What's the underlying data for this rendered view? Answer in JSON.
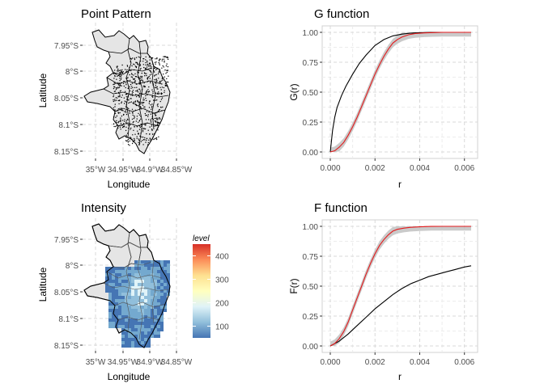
{
  "chart_data": [
    {
      "type": "map",
      "title": "Point Pattern",
      "xlabel": "Longitude",
      "ylabel": "Latitude",
      "x_ticks": [
        "35°W",
        "34.95°W",
        "34.9°W",
        "34.85°W"
      ],
      "y_ticks": [
        "7.95°S",
        "8°S",
        "8.05°S",
        "8.1°S",
        "8.15°S"
      ],
      "grid": true
    },
    {
      "type": "line",
      "title": "G function",
      "xlabel": "r",
      "ylabel": "G(r)",
      "x_ticks": [
        "0.000",
        "0.002",
        "0.004",
        "0.006"
      ],
      "y_ticks": [
        "0.00",
        "0.25",
        "0.50",
        "0.75",
        "1.00"
      ],
      "xlim": [
        0,
        0.0063
      ],
      "ylim": [
        0,
        1
      ],
      "grid": true,
      "series": [
        {
          "color": "#000000",
          "x": [
            0,
            0.0001,
            0.0002,
            0.0003,
            0.0005,
            0.0007,
            0.001,
            0.0013,
            0.0016,
            0.002,
            0.0024,
            0.0028,
            0.0032,
            0.0036,
            0.004,
            0.0045,
            0.005,
            0.0055,
            0.0063
          ],
          "y": [
            0,
            0.18,
            0.29,
            0.37,
            0.47,
            0.55,
            0.65,
            0.74,
            0.81,
            0.89,
            0.94,
            0.97,
            0.985,
            0.993,
            0.997,
            0.999,
            1,
            1,
            1
          ]
        },
        {
          "color": "#e41a1c",
          "x": [
            0,
            0.0002,
            0.0004,
            0.0006,
            0.0008,
            0.001,
            0.0012,
            0.0014,
            0.0016,
            0.0018,
            0.002,
            0.0022,
            0.0024,
            0.0026,
            0.0028,
            0.003,
            0.0032,
            0.0035,
            0.0038,
            0.0042,
            0.0046,
            0.005,
            0.0063
          ],
          "y": [
            0,
            0.01,
            0.04,
            0.08,
            0.14,
            0.21,
            0.29,
            0.38,
            0.47,
            0.56,
            0.65,
            0.73,
            0.8,
            0.86,
            0.91,
            0.94,
            0.96,
            0.98,
            0.99,
            0.995,
            0.998,
            1,
            1
          ]
        }
      ]
    },
    {
      "type": "heatmap",
      "title": "Intensity",
      "xlabel": "Longitude",
      "ylabel": "Latitude",
      "x_ticks": [
        "35°W",
        "34.95°W",
        "34.9°W",
        "34.85°W"
      ],
      "y_ticks": [
        "7.95°S",
        "8°S",
        "8.05°S",
        "8.1°S",
        "8.15°S"
      ],
      "legend": {
        "title": "level",
        "ticks": [
          100,
          200,
          300,
          400
        ],
        "range": [
          50,
          450
        ],
        "colors": [
          "#4575b4",
          "#91bfdb",
          "#e0f3f8",
          "#ffffbf",
          "#fee090",
          "#fc8d59",
          "#d73027"
        ]
      },
      "grid": true
    },
    {
      "type": "line",
      "title": "F function",
      "xlabel": "r",
      "ylabel": "F(r)",
      "x_ticks": [
        "0.000",
        "0.002",
        "0.004",
        "0.006"
      ],
      "y_ticks": [
        "0.00",
        "0.25",
        "0.50",
        "0.75",
        "1.00"
      ],
      "xlim": [
        0,
        0.0063
      ],
      "ylim": [
        0,
        1
      ],
      "grid": true,
      "series": [
        {
          "color": "#000000",
          "x": [
            0,
            0.0004,
            0.0008,
            0.0012,
            0.0016,
            0.002,
            0.0024,
            0.0028,
            0.0032,
            0.0036,
            0.004,
            0.0044,
            0.0048,
            0.0052,
            0.0056,
            0.006,
            0.0063
          ],
          "y": [
            0,
            0.04,
            0.1,
            0.17,
            0.24,
            0.31,
            0.37,
            0.43,
            0.48,
            0.52,
            0.55,
            0.58,
            0.6,
            0.62,
            0.64,
            0.66,
            0.67
          ]
        },
        {
          "color": "#e41a1c",
          "x": [
            0,
            0.0002,
            0.0004,
            0.0006,
            0.0008,
            0.001,
            0.0012,
            0.0014,
            0.0016,
            0.0018,
            0.002,
            0.0022,
            0.0024,
            0.0026,
            0.0028,
            0.003,
            0.0033,
            0.0036,
            0.004,
            0.0045,
            0.005,
            0.0063
          ],
          "y": [
            0,
            0.02,
            0.06,
            0.12,
            0.2,
            0.3,
            0.4,
            0.5,
            0.6,
            0.69,
            0.77,
            0.84,
            0.89,
            0.93,
            0.96,
            0.975,
            0.985,
            0.992,
            0.996,
            0.999,
            1,
            1
          ]
        }
      ]
    }
  ]
}
